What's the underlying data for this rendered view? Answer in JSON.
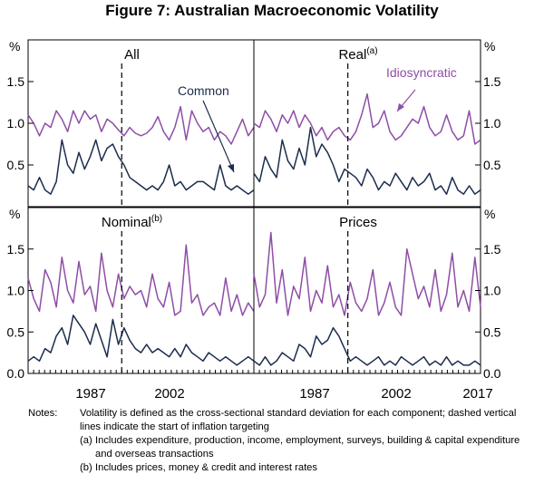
{
  "chart_data": {
    "type": "line",
    "title": "Figure 7: Australian Macroeconomic Volatility",
    "units_label": "%",
    "x_range": [
      1976,
      2017
    ],
    "x_tick_labels": [
      "1987",
      "2002",
      "2017"
    ],
    "x_tick_years": [
      1987,
      2002,
      2017
    ],
    "inflation_targeting_year": 1993,
    "panels": [
      {
        "label": "All",
        "sup": "",
        "ylim": [
          0,
          2.0
        ],
        "yticks": [
          "0.5",
          "1.0",
          "1.5"
        ],
        "left_axis": true,
        "right_axis": false,
        "annotations": [
          {
            "text": "Common",
            "target_series": "Common"
          }
        ],
        "series": [
          {
            "name": "Idiosyncratic",
            "color": "#8e4ea6",
            "values": [
              1.1,
              1.0,
              0.85,
              1.0,
              0.95,
              1.15,
              1.05,
              0.9,
              1.15,
              1.0,
              1.15,
              1.05,
              1.1,
              0.9,
              1.05,
              1.0,
              0.92,
              0.85,
              0.95,
              0.88,
              0.85,
              0.88,
              0.95,
              1.08,
              0.9,
              0.8,
              0.95,
              1.2,
              0.8,
              1.15,
              1.0,
              0.9,
              0.95,
              0.8,
              0.9,
              0.85,
              0.75,
              0.9,
              1.05,
              0.85,
              0.95
            ]
          },
          {
            "name": "Common",
            "color": "#1b2d4d",
            "values": [
              0.25,
              0.2,
              0.35,
              0.2,
              0.15,
              0.3,
              0.8,
              0.5,
              0.4,
              0.65,
              0.45,
              0.6,
              0.8,
              0.55,
              0.7,
              0.75,
              0.6,
              0.5,
              0.35,
              0.3,
              0.25,
              0.2,
              0.25,
              0.2,
              0.3,
              0.5,
              0.25,
              0.3,
              0.2,
              0.25,
              0.3,
              0.3,
              0.25,
              0.2,
              0.5,
              0.25,
              0.2,
              0.25,
              0.2,
              0.15,
              0.2
            ]
          }
        ]
      },
      {
        "label": "Real",
        "sup": "(a)",
        "ylim": [
          0,
          2.0
        ],
        "yticks": [
          "0.5",
          "1.0",
          "1.5"
        ],
        "left_axis": false,
        "right_axis": true,
        "annotations": [
          {
            "text": "Idiosyncratic",
            "target_series": "Idiosyncratic"
          }
        ],
        "series": [
          {
            "name": "Idiosyncratic",
            "color": "#8e4ea6",
            "values": [
              1.0,
              0.95,
              1.15,
              1.05,
              0.9,
              1.1,
              1.0,
              1.15,
              0.95,
              1.1,
              1.0,
              0.85,
              0.95,
              0.8,
              0.9,
              0.95,
              0.85,
              0.8,
              0.9,
              1.1,
              1.35,
              0.95,
              1.0,
              1.15,
              0.9,
              0.8,
              0.85,
              0.95,
              1.05,
              1.0,
              1.2,
              0.95,
              0.85,
              0.9,
              1.1,
              0.9,
              0.8,
              0.85,
              1.15,
              0.75,
              0.8
            ]
          },
          {
            "name": "Common",
            "color": "#1b2d4d",
            "values": [
              0.4,
              0.3,
              0.6,
              0.45,
              0.35,
              0.8,
              0.55,
              0.45,
              0.7,
              0.5,
              0.95,
              0.6,
              0.75,
              0.65,
              0.5,
              0.3,
              0.45,
              0.4,
              0.35,
              0.25,
              0.45,
              0.35,
              0.2,
              0.3,
              0.25,
              0.4,
              0.3,
              0.2,
              0.35,
              0.25,
              0.3,
              0.4,
              0.2,
              0.25,
              0.15,
              0.35,
              0.2,
              0.15,
              0.25,
              0.15,
              0.2
            ]
          }
        ]
      },
      {
        "label": "Nominal",
        "sup": "(b)",
        "ylim": [
          0,
          2.0
        ],
        "yticks": [
          "0.0",
          "0.5",
          "1.0",
          "1.5"
        ],
        "left_axis": true,
        "right_axis": false,
        "annotations": [],
        "series": [
          {
            "name": "Idiosyncratic",
            "color": "#8e4ea6",
            "values": [
              1.15,
              0.9,
              0.75,
              1.25,
              1.1,
              0.8,
              1.4,
              1.0,
              0.85,
              1.35,
              0.95,
              1.05,
              0.75,
              1.45,
              1.0,
              0.8,
              1.2,
              0.9,
              1.05,
              0.95,
              1.0,
              0.8,
              1.2,
              0.9,
              0.8,
              1.1,
              0.7,
              0.75,
              1.55,
              0.85,
              0.95,
              0.7,
              0.8,
              0.85,
              0.7,
              1.15,
              0.75,
              0.95,
              0.7,
              0.85,
              0.75
            ]
          },
          {
            "name": "Common",
            "color": "#1b2d4d",
            "values": [
              0.15,
              0.2,
              0.15,
              0.3,
              0.25,
              0.45,
              0.55,
              0.35,
              0.7,
              0.6,
              0.5,
              0.35,
              0.6,
              0.4,
              0.2,
              0.65,
              0.35,
              0.55,
              0.4,
              0.3,
              0.25,
              0.35,
              0.25,
              0.3,
              0.25,
              0.2,
              0.3,
              0.2,
              0.35,
              0.25,
              0.2,
              0.15,
              0.25,
              0.2,
              0.15,
              0.2,
              0.15,
              0.1,
              0.15,
              0.2,
              0.15
            ]
          }
        ]
      },
      {
        "label": "Prices",
        "sup": "",
        "ylim": [
          0,
          2.0
        ],
        "yticks": [
          "0.0",
          "0.5",
          "1.0",
          "1.5"
        ],
        "left_axis": false,
        "right_axis": true,
        "annotations": [],
        "series": [
          {
            "name": "Idiosyncratic",
            "color": "#8e4ea6",
            "values": [
              1.2,
              0.8,
              0.95,
              1.7,
              0.85,
              1.25,
              0.7,
              1.05,
              0.9,
              1.4,
              0.75,
              1.0,
              0.85,
              1.3,
              0.8,
              0.95,
              0.7,
              1.1,
              0.85,
              0.75,
              0.9,
              1.25,
              0.7,
              0.85,
              1.1,
              0.8,
              0.7,
              1.5,
              1.2,
              0.9,
              1.05,
              0.8,
              1.25,
              0.75,
              0.95,
              1.45,
              0.8,
              1.0,
              0.75,
              1.4,
              0.8
            ]
          },
          {
            "name": "Common",
            "color": "#1b2d4d",
            "values": [
              0.15,
              0.1,
              0.2,
              0.1,
              0.15,
              0.25,
              0.2,
              0.15,
              0.35,
              0.3,
              0.2,
              0.45,
              0.35,
              0.4,
              0.55,
              0.45,
              0.3,
              0.15,
              0.2,
              0.15,
              0.1,
              0.15,
              0.2,
              0.1,
              0.15,
              0.1,
              0.2,
              0.15,
              0.1,
              0.15,
              0.2,
              0.1,
              0.15,
              0.1,
              0.2,
              0.1,
              0.15,
              0.1,
              0.1,
              0.15,
              0.1
            ]
          }
        ]
      }
    ]
  },
  "notes": {
    "label": "Notes:",
    "text": "Volatility is defined as the cross-sectional standard deviation for each component; dashed vertical lines indicate the start of inflation targeting",
    "footnotes": [
      {
        "key": "(a)",
        "text": "Includes expenditure, production, income, employment, surveys, building & capital expenditure and overseas transactions"
      },
      {
        "key": "(b)",
        "text": "Includes prices, money & credit and interest rates"
      }
    ]
  }
}
